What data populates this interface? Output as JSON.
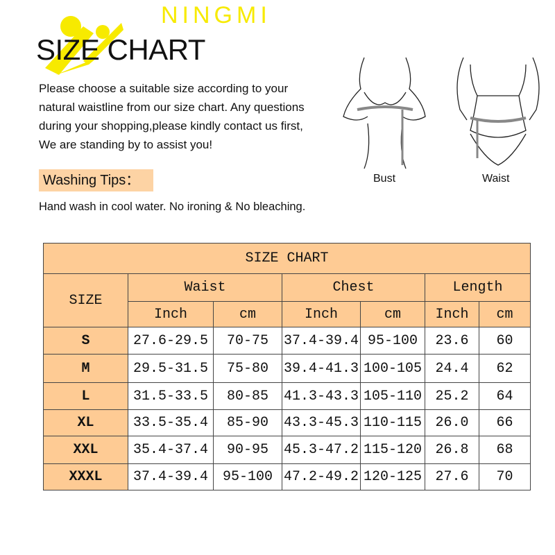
{
  "brand": {
    "name": "NINGMI",
    "color": "#f7ea00"
  },
  "title": "SIZE CHART",
  "intro": [
    "Please choose a suitable size according to your",
    "natural waistline from our size chart. Any questions",
    "during your shopping,please kindly contact us first,",
    "We are standing by to assist you!"
  ],
  "washing": {
    "label": "Washing Tips：",
    "text": "Hand wash in cool water. No ironing & No bleaching."
  },
  "figures": {
    "bust": "Bust",
    "waist": "Waist"
  },
  "table": {
    "title": "SIZE CHART",
    "size_header": "SIZE",
    "groups": [
      "Waist",
      "Chest",
      "Length"
    ],
    "units": [
      "Inch",
      "cm",
      "Inch",
      "cm",
      "Inch",
      "cm"
    ],
    "rows": [
      {
        "size": "S",
        "cells": [
          "27.6-29.5",
          "70-75",
          "37.4-39.4",
          "95-100",
          "23.6",
          "60"
        ]
      },
      {
        "size": "M",
        "cells": [
          "29.5-31.5",
          "75-80",
          "39.4-41.3",
          "100-105",
          "24.4",
          "62"
        ]
      },
      {
        "size": "L",
        "cells": [
          "31.5-33.5",
          "80-85",
          "41.3-43.3",
          "105-110",
          "25.2",
          "64"
        ]
      },
      {
        "size": "XL",
        "cells": [
          "33.5-35.4",
          "85-90",
          "43.3-45.3",
          "110-115",
          "26.0",
          "66"
        ]
      },
      {
        "size": "XXL",
        "cells": [
          "35.4-37.4",
          "90-95",
          "45.3-47.2",
          "115-120",
          "26.8",
          "68"
        ]
      },
      {
        "size": "XXXL",
        "cells": [
          "37.4-39.4",
          "95-100",
          "47.2-49.2",
          "120-125",
          "27.6",
          "70"
        ]
      }
    ],
    "header_color": "#fecb94"
  }
}
